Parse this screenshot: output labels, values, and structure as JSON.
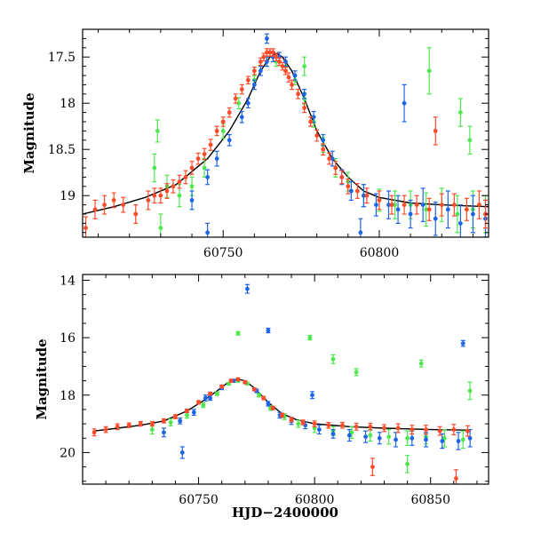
{
  "chart_data": [
    {
      "type": "scatter",
      "panel": "top",
      "title": "",
      "xlabel": "",
      "ylabel": "Magnitude",
      "xlim": [
        60705,
        60835
      ],
      "ylim": [
        19.45,
        17.2
      ],
      "y_inverted": true,
      "xticks": [
        60750,
        60800
      ],
      "yticks": [
        17.5,
        18,
        18.5,
        19
      ],
      "ytick_labels": [
        "17.5",
        "18",
        "18.5",
        "19"
      ],
      "grid": false,
      "legend": "none",
      "series": [
        {
          "color": "#ff4a2a",
          "x": [
            60706,
            60709,
            60712,
            60715,
            60718,
            60722,
            60726,
            60728,
            60730,
            60732,
            60734,
            60736,
            60738,
            60740,
            60742,
            60744,
            60746,
            60748,
            60750,
            60752,
            60754,
            60756,
            60758,
            60760,
            60762,
            60763,
            60764,
            60765,
            60766,
            60767,
            60768,
            60769,
            60770,
            60771,
            60772,
            60774,
            60776,
            60778,
            60780,
            60782,
            60784,
            60786,
            60788,
            60790,
            60793,
            60796,
            60800,
            60804,
            60808,
            60812,
            60816,
            60820,
            60824,
            60828,
            60832,
            60834
          ],
          "y": [
            19.35,
            19.15,
            19.1,
            19.05,
            19.1,
            19.2,
            19.05,
            19.0,
            19.0,
            18.95,
            18.9,
            18.85,
            18.8,
            18.7,
            18.6,
            18.55,
            18.45,
            18.3,
            18.2,
            18.1,
            17.95,
            17.85,
            17.75,
            17.65,
            17.55,
            17.5,
            17.45,
            17.45,
            17.45,
            17.5,
            17.55,
            17.6,
            17.65,
            17.72,
            17.8,
            17.9,
            18.05,
            18.2,
            18.35,
            18.5,
            18.6,
            18.7,
            18.8,
            18.9,
            18.95,
            19.0,
            19.05,
            19.1,
            19.1,
            19.1,
            19.15,
            19.1,
            19.1,
            19.15,
            19.1,
            19.2
          ],
          "yerr": [
            0.12,
            0.1,
            0.1,
            0.08,
            0.08,
            0.1,
            0.1,
            0.08,
            0.08,
            0.08,
            0.07,
            0.07,
            0.07,
            0.07,
            0.06,
            0.06,
            0.06,
            0.05,
            0.05,
            0.05,
            0.05,
            0.05,
            0.04,
            0.04,
            0.04,
            0.04,
            0.04,
            0.04,
            0.04,
            0.04,
            0.04,
            0.04,
            0.04,
            0.05,
            0.05,
            0.05,
            0.05,
            0.05,
            0.06,
            0.06,
            0.06,
            0.07,
            0.07,
            0.08,
            0.08,
            0.08,
            0.1,
            0.1,
            0.1,
            0.1,
            0.12,
            0.12,
            0.12,
            0.12,
            0.15,
            0.15
          ]
        },
        {
          "color": "#1e64e6",
          "x": [
            60740,
            60745,
            60748,
            60752,
            60756,
            60758,
            60760,
            60762,
            60764,
            60766,
            60768,
            60770,
            60773,
            60776,
            60779,
            60782,
            60785,
            60788,
            60791,
            60795,
            60799,
            60803,
            60806,
            60810,
            60814,
            60818,
            60822,
            60826,
            60830,
            60834
          ],
          "y": [
            19.05,
            18.8,
            18.6,
            18.4,
            18.15,
            18.0,
            17.8,
            17.65,
            17.55,
            17.5,
            17.5,
            17.55,
            17.7,
            17.9,
            18.15,
            18.4,
            18.6,
            18.8,
            18.95,
            19.0,
            19.1,
            19.1,
            19.15,
            19.2,
            19.1,
            19.25,
            19.15,
            19.3,
            19.2,
            19.25
          ],
          "yerr": [
            0.1,
            0.08,
            0.08,
            0.06,
            0.06,
            0.05,
            0.05,
            0.05,
            0.05,
            0.05,
            0.05,
            0.05,
            0.05,
            0.05,
            0.06,
            0.06,
            0.08,
            0.08,
            0.1,
            0.12,
            0.12,
            0.15,
            0.15,
            0.15,
            0.18,
            0.18,
            0.2,
            0.2,
            0.2,
            0.2
          ]
        },
        {
          "color": "#4ee84e",
          "x": [
            60728,
            60732,
            60736,
            60740,
            60744,
            60750,
            60755,
            60760,
            60764,
            60767,
            60770,
            60773,
            60776,
            60779,
            60782,
            60786,
            60790,
            60795,
            60800,
            60805,
            60810,
            60815,
            60820,
            60825,
            60830,
            60834
          ],
          "y": [
            18.7,
            18.9,
            19.0,
            18.9,
            18.7,
            18.3,
            18.0,
            17.75,
            17.55,
            17.55,
            17.6,
            17.75,
            17.95,
            18.2,
            18.45,
            18.7,
            18.85,
            19.0,
            19.05,
            19.1,
            19.1,
            19.15,
            19.1,
            19.2,
            19.15,
            19.2
          ],
          "yerr": [
            0.15,
            0.12,
            0.12,
            0.1,
            0.1,
            0.08,
            0.06,
            0.05,
            0.05,
            0.05,
            0.05,
            0.05,
            0.06,
            0.06,
            0.08,
            0.1,
            0.1,
            0.12,
            0.12,
            0.15,
            0.15,
            0.18,
            0.18,
            0.2,
            0.2,
            0.2
          ]
        }
      ],
      "outliers": [
        {
          "x": 60729,
          "y": 18.3,
          "yerr": 0.12,
          "color": "#4ee84e"
        },
        {
          "x": 60776,
          "y": 17.6,
          "yerr": 0.1,
          "color": "#4ee84e"
        },
        {
          "x": 60808,
          "y": 18.0,
          "yerr": 0.2,
          "color": "#1e64e6"
        },
        {
          "x": 60816,
          "y": 17.65,
          "yerr": 0.25,
          "color": "#4ee84e"
        },
        {
          "x": 60818,
          "y": 18.3,
          "yerr": 0.15,
          "color": "#ff4a2a"
        },
        {
          "x": 60826,
          "y": 18.1,
          "yerr": 0.15,
          "color": "#4ee84e"
        },
        {
          "x": 60829,
          "y": 18.4,
          "yerr": 0.15,
          "color": "#4ee84e"
        },
        {
          "x": 60764,
          "y": 17.3,
          "yerr": 0.05,
          "color": "#1e64e6"
        },
        {
          "x": 60794,
          "y": 19.4,
          "yerr": 0.15,
          "color": "#1e64e6"
        },
        {
          "x": 60745,
          "y": 19.4,
          "yerr": 0.1,
          "color": "#1e64e6"
        },
        {
          "x": 60730,
          "y": 19.35,
          "yerr": 0.15,
          "color": "#4ee84e"
        }
      ],
      "fit_curve": {
        "color": "#000000",
        "x": [
          60705,
          60715,
          60725,
          60735,
          60745,
          60752,
          60758,
          60762,
          60765,
          60767,
          60769,
          60772,
          60776,
          60780,
          60785,
          60790,
          60795,
          60800,
          60810,
          60820,
          60835
        ],
        "y": [
          19.2,
          19.12,
          19.02,
          18.88,
          18.6,
          18.3,
          17.95,
          17.65,
          17.5,
          17.46,
          17.5,
          17.65,
          17.95,
          18.3,
          18.6,
          18.8,
          18.95,
          19.02,
          19.08,
          19.1,
          19.12
        ]
      }
    },
    {
      "type": "scatter",
      "panel": "bottom",
      "title": "",
      "xlabel": "HJD−2400000",
      "ylabel": "Magnitude",
      "xlim": [
        60700,
        60875
      ],
      "ylim": [
        21.1,
        13.8
      ],
      "y_inverted": true,
      "xticks": [
        60750,
        60800,
        60850
      ],
      "yticks": [
        14,
        16,
        18,
        20
      ],
      "ytick_labels": [
        "14",
        "16",
        "18",
        "20"
      ],
      "grid": false,
      "legend": "none",
      "series": [
        {
          "color": "#ff4a2a",
          "x": [
            60705,
            60710,
            60715,
            60720,
            60725,
            60730,
            60735,
            60740,
            60745,
            60750,
            60755,
            60760,
            60764,
            60767,
            60770,
            60774,
            60778,
            60782,
            60786,
            60790,
            60795,
            60800,
            60806,
            60812,
            60818,
            60824,
            60830,
            60836,
            60842,
            60848,
            60854,
            60860,
            60866
          ],
          "y": [
            19.3,
            19.2,
            19.1,
            19.05,
            19.0,
            19.0,
            18.9,
            18.75,
            18.55,
            18.25,
            17.95,
            17.7,
            17.5,
            17.45,
            17.55,
            17.8,
            18.1,
            18.45,
            18.7,
            18.85,
            18.95,
            19.0,
            19.05,
            19.05,
            19.1,
            19.1,
            19.15,
            19.15,
            19.2,
            19.2,
            19.25,
            19.2,
            19.25
          ],
          "yerr": [
            0.12,
            0.1,
            0.1,
            0.08,
            0.08,
            0.08,
            0.07,
            0.07,
            0.06,
            0.06,
            0.05,
            0.05,
            0.05,
            0.05,
            0.05,
            0.05,
            0.06,
            0.06,
            0.07,
            0.08,
            0.08,
            0.1,
            0.1,
            0.1,
            0.12,
            0.12,
            0.12,
            0.15,
            0.15,
            0.15,
            0.15,
            0.18,
            0.18
          ]
        },
        {
          "color": "#1e64e6",
          "x": [
            60735,
            60742,
            60748,
            60755,
            60760,
            60765,
            60770,
            60775,
            60780,
            60785,
            60790,
            60796,
            60802,
            60808,
            60815,
            60822,
            60828,
            60835,
            60842,
            60848,
            60855,
            60862,
            60867
          ],
          "y": [
            19.3,
            18.9,
            18.6,
            18.1,
            17.75,
            17.5,
            17.55,
            17.85,
            18.3,
            18.7,
            18.9,
            19.05,
            19.2,
            19.35,
            19.4,
            19.45,
            19.5,
            19.55,
            19.5,
            19.55,
            19.6,
            19.6,
            19.5
          ],
          "yerr": [
            0.15,
            0.1,
            0.1,
            0.08,
            0.06,
            0.05,
            0.05,
            0.06,
            0.08,
            0.1,
            0.12,
            0.12,
            0.15,
            0.15,
            0.2,
            0.2,
            0.2,
            0.25,
            0.25,
            0.25,
            0.25,
            0.3,
            0.3
          ]
        },
        {
          "color": "#4ee84e",
          "x": [
            60730,
            60738,
            60745,
            60752,
            60758,
            60763,
            60767,
            60771,
            60776,
            60781,
            60787,
            60793,
            60800,
            60808,
            60816,
            60824,
            60832,
            60840,
            60848,
            60856,
            60864
          ],
          "y": [
            19.2,
            18.95,
            18.7,
            18.35,
            17.95,
            17.6,
            17.5,
            17.6,
            18.0,
            18.45,
            18.75,
            19.0,
            19.15,
            19.25,
            19.3,
            19.4,
            19.45,
            19.5,
            19.45,
            19.5,
            19.55
          ],
          "yerr": [
            0.15,
            0.12,
            0.1,
            0.08,
            0.06,
            0.05,
            0.05,
            0.05,
            0.06,
            0.08,
            0.1,
            0.12,
            0.15,
            0.15,
            0.2,
            0.2,
            0.25,
            0.25,
            0.25,
            0.3,
            0.3
          ]
        }
      ],
      "outliers": [
        {
          "x": 60771,
          "y": 14.3,
          "yerr": 0.15,
          "color": "#1e64e6"
        },
        {
          "x": 60780,
          "y": 15.75,
          "yerr": 0.08,
          "color": "#1e64e6"
        },
        {
          "x": 60767,
          "y": 15.85,
          "yerr": 0.06,
          "color": "#4ee84e"
        },
        {
          "x": 60798,
          "y": 16.0,
          "yerr": 0.08,
          "color": "#4ee84e"
        },
        {
          "x": 60808,
          "y": 16.75,
          "yerr": 0.15,
          "color": "#4ee84e"
        },
        {
          "x": 60818,
          "y": 17.2,
          "yerr": 0.12,
          "color": "#4ee84e"
        },
        {
          "x": 60846,
          "y": 16.9,
          "yerr": 0.12,
          "color": "#4ee84e"
        },
        {
          "x": 60864,
          "y": 16.2,
          "yerr": 0.1,
          "color": "#1e64e6"
        },
        {
          "x": 60867,
          "y": 17.85,
          "yerr": 0.3,
          "color": "#4ee84e"
        },
        {
          "x": 60753,
          "y": 18.1,
          "yerr": 0.1,
          "color": "#1e64e6"
        },
        {
          "x": 60799,
          "y": 18.0,
          "yerr": 0.12,
          "color": "#1e64e6"
        },
        {
          "x": 60743,
          "y": 20.0,
          "yerr": 0.2,
          "color": "#1e64e6"
        },
        {
          "x": 60861,
          "y": 20.9,
          "yerr": 0.3,
          "color": "#ff4a2a"
        },
        {
          "x": 60825,
          "y": 20.5,
          "yerr": 0.3,
          "color": "#ff4a2a"
        },
        {
          "x": 60840,
          "y": 20.4,
          "yerr": 0.3,
          "color": "#4ee84e"
        }
      ],
      "fit_curve": {
        "color": "#000000",
        "x": [
          60705,
          60715,
          60725,
          60735,
          60745,
          60752,
          60758,
          60762,
          60765,
          60767,
          60770,
          60774,
          60780,
          60786,
          60792,
          60800,
          60815,
          60830,
          60850,
          60867
        ],
        "y": [
          19.25,
          19.15,
          19.05,
          18.9,
          18.55,
          18.2,
          17.85,
          17.6,
          17.48,
          17.45,
          17.5,
          17.75,
          18.25,
          18.65,
          18.85,
          19.0,
          19.1,
          19.15,
          19.2,
          19.22
        ]
      }
    }
  ]
}
